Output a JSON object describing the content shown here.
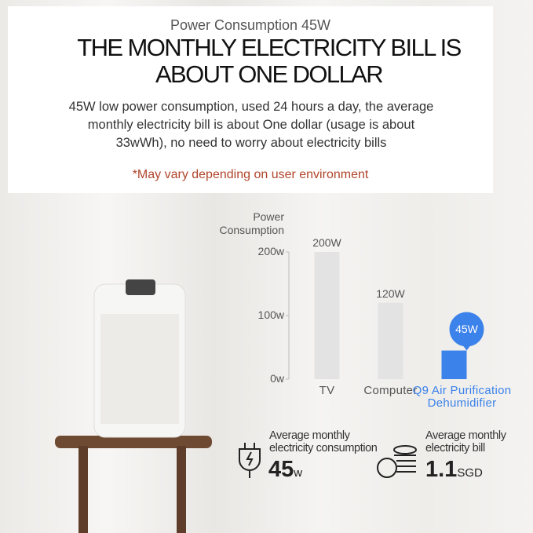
{
  "header": {
    "subtitle": "Power Consumption 45W",
    "title": "THE MONTHLY ELECTRICITY BILL IS ABOUT ONE DOLLAR",
    "description": "45W low power consumption, used 24 hours a day, the average monthly electricity bill is about One dollar (usage is about 33wWh), no need to worry about electricity bills",
    "note": "*May vary depending on user environment"
  },
  "chart_data": {
    "type": "bar",
    "ylabel": "Power Consumption",
    "categories": [
      "TV",
      "Computer",
      "Q9 Air Purification Dehumidifier"
    ],
    "values": [
      200,
      120,
      45
    ],
    "value_labels": [
      "200W",
      "120W",
      "45W"
    ],
    "colors": [
      "#e3e3e3",
      "#e3e3e3",
      "#3b82ea"
    ],
    "ylim": [
      0,
      200
    ],
    "yticks": [
      {
        "value": 0,
        "label": "0w"
      },
      {
        "value": 100,
        "label": "100w"
      },
      {
        "value": 200,
        "label": "200w"
      }
    ]
  },
  "stats": [
    {
      "label": "Average monthly electricity consumption",
      "value": 45,
      "unit": "w"
    },
    {
      "label": "Average monthly electricity bill",
      "value": 1.1,
      "unit": "SGD"
    }
  ]
}
